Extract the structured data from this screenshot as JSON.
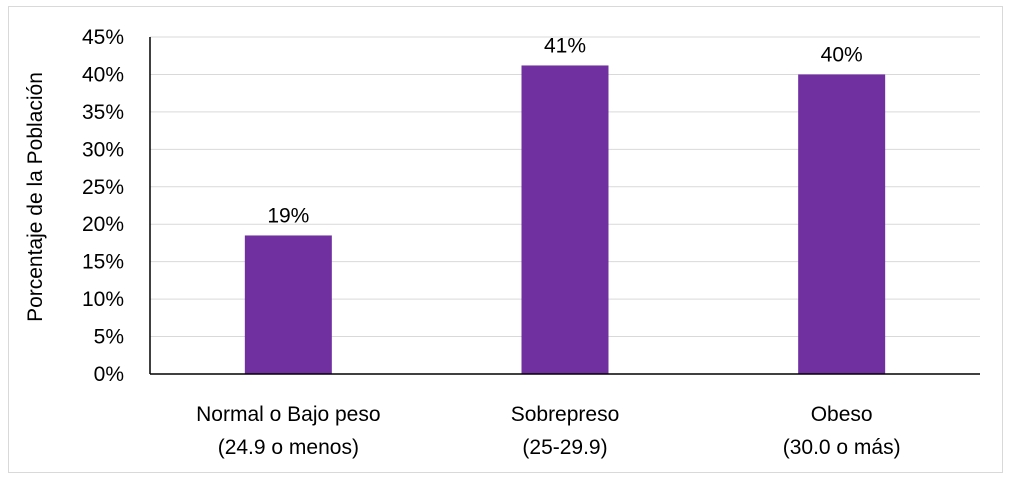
{
  "chart_data": {
    "type": "bar",
    "categories": [
      [
        "Normal o Bajo peso",
        "(24.9 o menos)"
      ],
      [
        "Sobrepreso",
        "(25-29.9)"
      ],
      [
        "Obeso",
        "(30.0 o más)"
      ]
    ],
    "values": [
      18.5,
      41.2,
      40.0
    ],
    "data_labels": [
      "19%",
      "41%",
      "40%"
    ],
    "title": "",
    "xlabel": "",
    "ylabel": "Porcentaje de la Población",
    "ylim": [
      0,
      45
    ],
    "yticks": [
      0,
      5,
      10,
      15,
      20,
      25,
      30,
      35,
      40,
      45
    ],
    "ytick_labels": [
      "0%",
      "5%",
      "10%",
      "15%",
      "20%",
      "25%",
      "30%",
      "35%",
      "40%",
      "45%"
    ],
    "grid": true,
    "legend": "none",
    "colors": {
      "bar": "#7030a0",
      "grid": "#d9d9d9",
      "axis": "#000000"
    }
  }
}
